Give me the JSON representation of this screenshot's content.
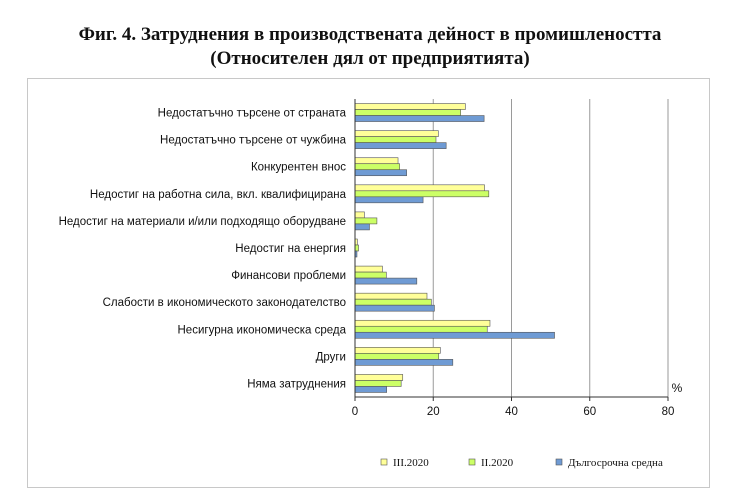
{
  "header": {
    "title_line1": "Фиг. 4. Затруднения в производствената дейност в промишлеността",
    "title_line2": "(Относителен дял от предприятията)"
  },
  "chart_data": {
    "type": "bar",
    "orientation": "horizontal",
    "title": "Фиг. 4. Затруднения в производствената дейност в промишлеността (Относителен дял от предприятията)",
    "unit": "%",
    "categories": [
      "Недостатъчно търсене от страната",
      "Недостатъчно търсене от чужбина",
      "Конкурентен внос",
      "Недостиг на работна сила, вкл. квалифицирана",
      "Недостиг на материали и/или подходящо оборудване",
      "Недостиг на енергия",
      "Финансови проблеми",
      "Слабости в икономическото законодателство",
      "Несигурна икономическа среда",
      "Други",
      "Няма затруднения"
    ],
    "series": [
      {
        "name": "III.2020",
        "color": "#ffff99",
        "values": [
          28.2,
          21.3,
          11.0,
          33.1,
          2.4,
          0.6,
          7.0,
          18.4,
          34.5,
          21.8,
          12.2
        ]
      },
      {
        "name": "II.2020",
        "color": "#ccff66",
        "values": [
          27.0,
          20.7,
          11.4,
          34.2,
          5.6,
          0.9,
          8.0,
          19.5,
          33.8,
          21.4,
          11.8
        ]
      },
      {
        "name": "Дългосрочна средна",
        "color": "#6f9bd4",
        "values": [
          33.0,
          23.3,
          13.2,
          17.4,
          3.7,
          0.5,
          15.8,
          20.3,
          51.0,
          25.0,
          8.1
        ]
      }
    ],
    "xlim": [
      0,
      80
    ],
    "xticks": [
      0,
      20,
      40,
      60,
      80
    ],
    "grid": true,
    "legend_position": "bottom"
  }
}
